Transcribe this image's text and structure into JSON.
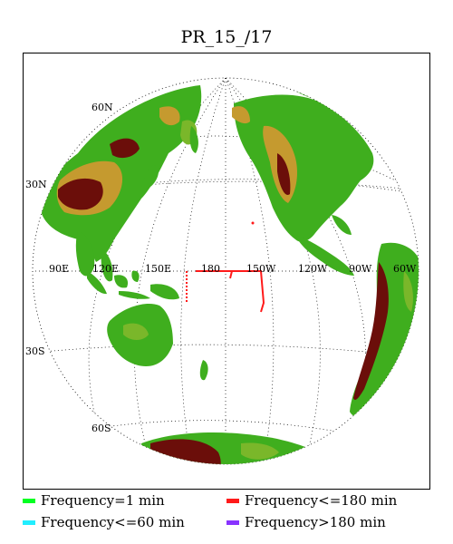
{
  "title": "PR_15_/17",
  "map": {
    "projection": "orthographic",
    "lat_labels": [
      "60N",
      "30N",
      "30S",
      "60S"
    ],
    "lon_labels": [
      "90E",
      "120E",
      "150E",
      "180",
      "150W",
      "120W",
      "90W",
      "60W"
    ],
    "colors": {
      "ocean": "#ffffff",
      "land_low": "#3fae1e",
      "land_mid": "#7ab72a",
      "land_high": "#c59a2f",
      "land_peak": "#6b0e0a",
      "track": "#ff1a1a"
    }
  },
  "legend": [
    {
      "label": "Frequency=1 min",
      "color": "#00ff22"
    },
    {
      "label": "Frequency<=180 min",
      "color": "#ff1a1a"
    },
    {
      "label": "Frequency<=60 min",
      "color": "#22eeff"
    },
    {
      "label": "Frequency>180 min",
      "color": "#8833ff"
    }
  ]
}
